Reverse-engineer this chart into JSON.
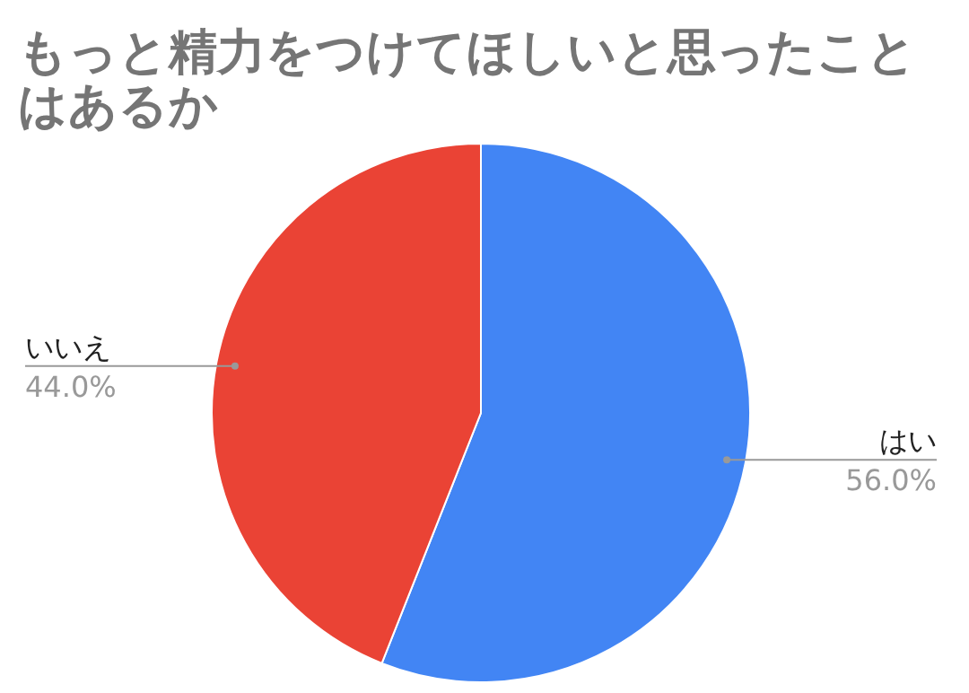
{
  "chart_data": {
    "type": "pie",
    "title": "もっと精力をつけてほしいと思ったことはあるか",
    "categories": [
      "はい",
      "いいえ"
    ],
    "values": [
      56,
      44
    ],
    "colors": [
      "#4285f4",
      "#ea4335"
    ],
    "value_labels": [
      "56.0%",
      "44.0%"
    ],
    "legend": false
  }
}
